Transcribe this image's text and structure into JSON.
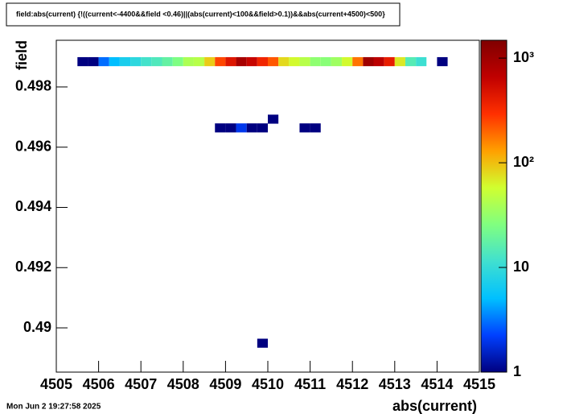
{
  "chart_data": {
    "type": "heatmap",
    "title": "field:abs(current) {!((current<-4400&&field <0.46)||(abs(current)<100&&field>0.1))&&abs(current+4500)<500}",
    "x_label": "abs(current)",
    "y_label": "field",
    "timestamp": "Mon Jun  2 19:27:58 2025",
    "xbin": 0.25,
    "ybin": 0.0003,
    "x": [
      4505.5,
      4505.75,
      4506.0,
      4506.25,
      4506.5,
      4506.75,
      4507.0,
      4507.25,
      4507.5,
      4507.75,
      4508.0,
      4508.25,
      4508.5,
      4508.75,
      4509.0,
      4509.25,
      4509.5,
      4509.75,
      4510.0,
      4510.25,
      4510.5,
      4510.75,
      4511.0,
      4511.25,
      4511.5,
      4511.75,
      4512.0,
      4512.25,
      4512.5,
      4512.75,
      4513.0,
      4513.25,
      4513.5,
      4514.0,
      4508.75,
      4509.0,
      4509.25,
      4509.5,
      4509.75,
      4510.75,
      4511.0,
      4510.0,
      4509.75
    ],
    "y": [
      0.49869,
      0.49869,
      0.49869,
      0.49869,
      0.49869,
      0.49869,
      0.49869,
      0.49869,
      0.49869,
      0.49869,
      0.49869,
      0.49869,
      0.49869,
      0.49869,
      0.49869,
      0.49869,
      0.49869,
      0.49869,
      0.49869,
      0.49869,
      0.49869,
      0.49869,
      0.49869,
      0.49869,
      0.49869,
      0.49869,
      0.49869,
      0.49869,
      0.49869,
      0.49869,
      0.49869,
      0.49869,
      0.49869,
      0.49869,
      0.49649,
      0.49649,
      0.49649,
      0.49649,
      0.49649,
      0.49649,
      0.49649,
      0.49678,
      0.48934
    ],
    "values": [
      1,
      1,
      3,
      5,
      7,
      9,
      12,
      14,
      18,
      25,
      40,
      45,
      90,
      250,
      450,
      900,
      600,
      350,
      220,
      80,
      60,
      45,
      30,
      28,
      35,
      60,
      180,
      1000,
      700,
      400,
      70,
      15,
      11,
      1,
      1,
      1,
      2,
      1,
      1,
      1,
      1,
      1,
      1
    ],
    "xlim": [
      4505,
      4515
    ],
    "ylim": [
      0.48853,
      0.49955
    ],
    "zlim": [
      1,
      1480
    ],
    "zlog": true,
    "xticks": [
      4505,
      4506,
      4507,
      4508,
      4509,
      4510,
      4511,
      4512,
      4513,
      4514,
      4515
    ],
    "yticks": [
      0.49,
      0.492,
      0.494,
      0.496,
      0.498
    ],
    "zticks": [
      1,
      10,
      {
        "value": 100,
        "label": "10²"
      },
      {
        "value": 1000,
        "label": "10³"
      }
    ],
    "palette": [
      "#000080",
      "#0040ff",
      "#00c0ff",
      "#40e0d0",
      "#80ff80",
      "#d0ff30",
      "#ffa000",
      "#ff3000",
      "#c00000",
      "#800000"
    ]
  }
}
